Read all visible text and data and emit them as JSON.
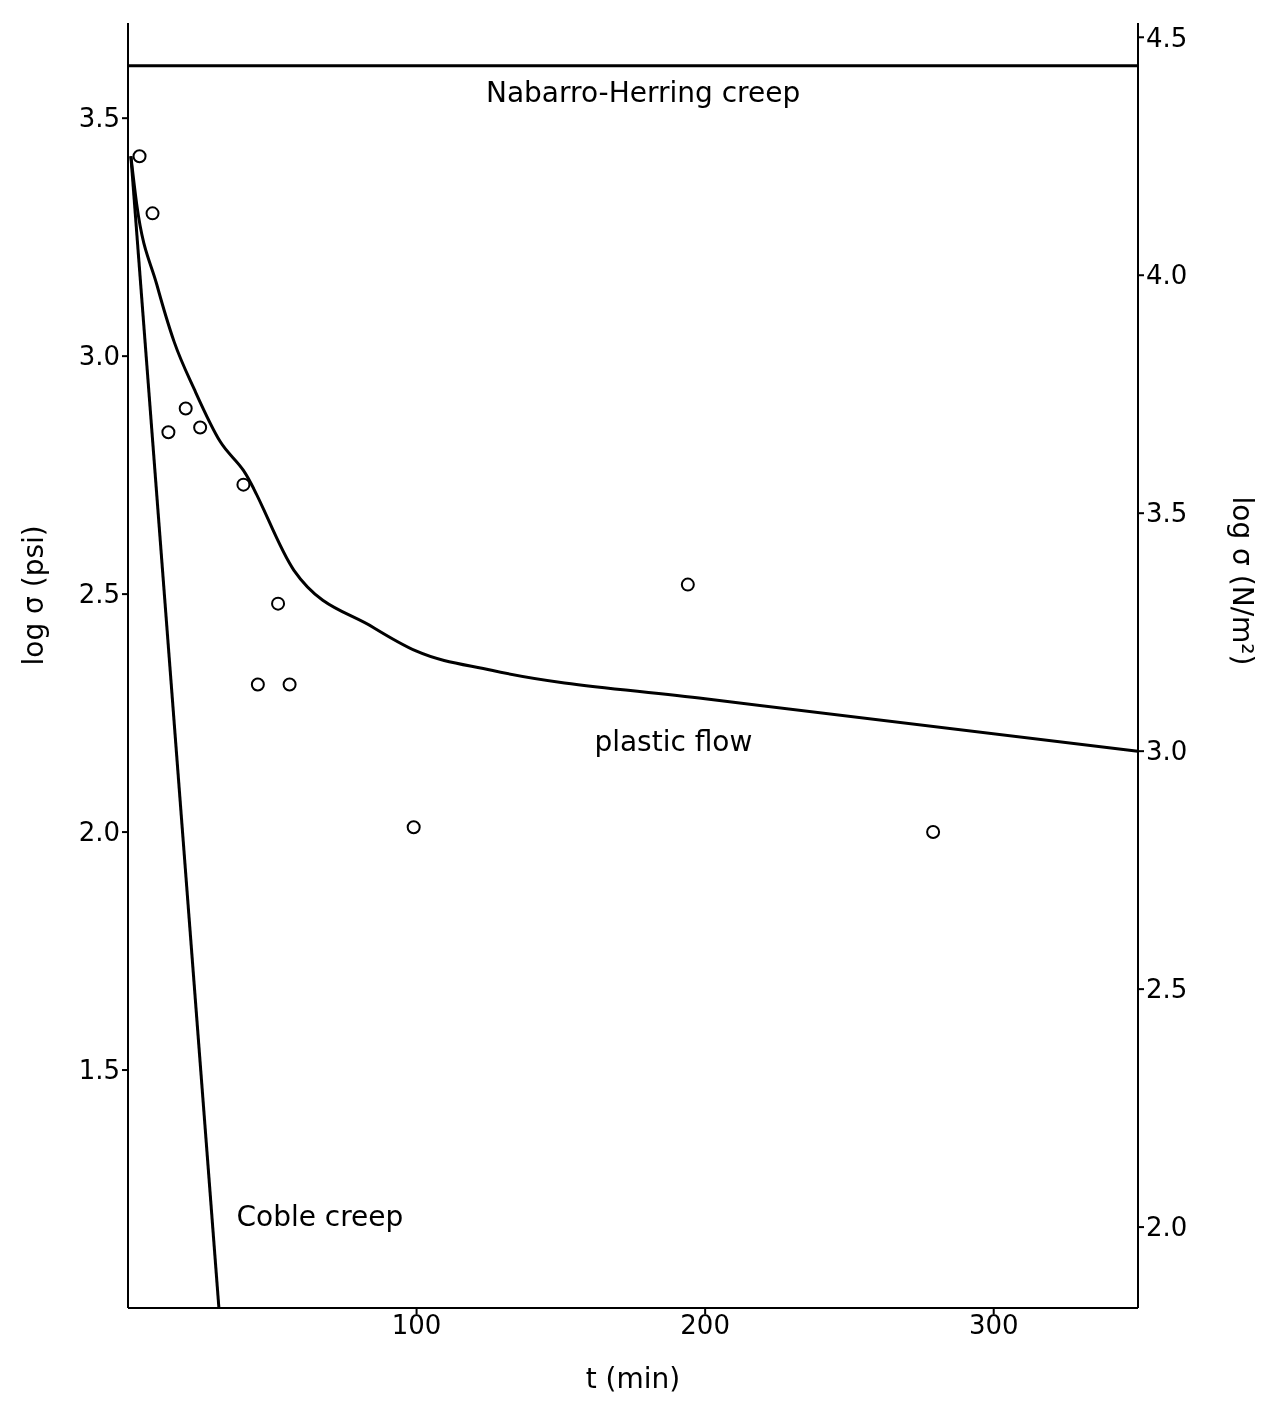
{
  "chart_data": {
    "type": "scatter",
    "xlabel": "t (min)",
    "ylabel": "log σ (psi)",
    "y2label": "log σ (N/m²)",
    "xlim": [
      0,
      350
    ],
    "xticks": [
      100,
      200,
      300
    ],
    "ylim": [
      1.0,
      3.7
    ],
    "yticks": [
      {
        "value": 1.5,
        "label": "1.5"
      },
      {
        "value": 2,
        "label": "2.0"
      },
      {
        "value": 2.5,
        "label": "2.5"
      },
      {
        "value": 3,
        "label": "3.0"
      },
      {
        "value": 3.5,
        "label": "3.5"
      }
    ],
    "y2lim": [
      1.83,
      4.53
    ],
    "y2ticks": [
      {
        "value": 2,
        "label": "2.0"
      },
      {
        "value": 2.5,
        "label": "2.5"
      },
      {
        "value": 3,
        "label": "3.0"
      },
      {
        "value": 3.5,
        "label": "3.5"
      },
      {
        "value": 4,
        "label": "4.0"
      },
      {
        "value": 4.5,
        "label": "4.5"
      }
    ],
    "grid": false,
    "legend": false,
    "series": [
      {
        "marker": "circle",
        "color": "#000000",
        "x": [
          4,
          8.5,
          14,
          20,
          25,
          40,
          45,
          52,
          56,
          99,
          194,
          279
        ],
        "values": [
          3.42,
          3.3,
          2.84,
          2.89,
          2.85,
          2.73,
          2.31,
          2.48,
          2.31,
          2.01,
          2.52,
          2.0
        ]
      },
      {
        "type": "line",
        "marker": "none",
        "name": "Nabarro-Herring creep",
        "color": "#000000",
        "x": [
          0,
          350
        ],
        "values": [
          3.61,
          3.61
        ]
      },
      {
        "type": "line",
        "marker": "none",
        "name": "Coble creep",
        "color": "#000000",
        "x": [
          1,
          31.5
        ],
        "values": [
          3.42,
          1.0
        ]
      },
      {
        "type": "line",
        "marker": "none",
        "name": "plastic flow",
        "color": "#000000",
        "x": [
          1,
          3,
          10,
          16,
          23,
          32,
          40,
          57.5,
          85,
          100,
          126,
          200,
          350
        ],
        "values": [
          3.42,
          3.32,
          3.15,
          3.03,
          2.93,
          2.82,
          2.76,
          2.55,
          2.43,
          2.38,
          2.34,
          2.28,
          2.17
        ]
      }
    ]
  }
}
